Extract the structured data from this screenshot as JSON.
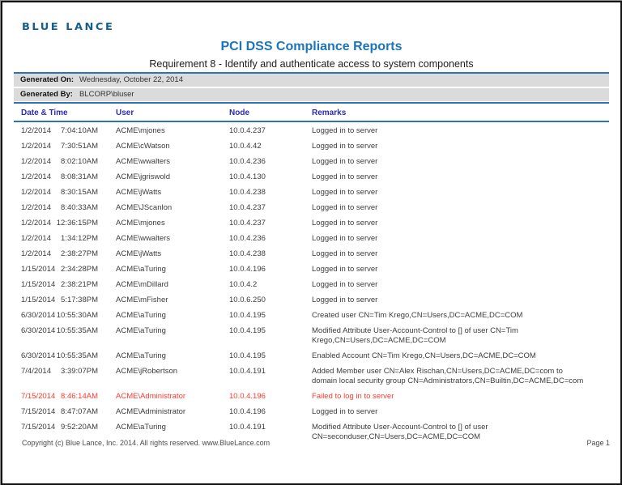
{
  "colors": {
    "logo": "#16608C",
    "title-blue": "#1C75BB",
    "rule-blue": "#2E74B5",
    "bar-gray": "#DBDBDB",
    "header-navy": "#2B2BB2",
    "fail-red": "#FF3B2E"
  },
  "report": {
    "logo_text": "BLUE LANCE",
    "title": "PCI DSS Compliance Reports",
    "subtitle": "Requirement 8 - Identify and authenticate access to system components",
    "generated_on_label": "Generated On:",
    "generated_on": "Wednesday, October 22, 2014",
    "generated_by_label": "Generated By:",
    "generated_by": "BLCORP\\bluser"
  },
  "table": {
    "columns": [
      "Date & Time",
      "User",
      "Node",
      "Remarks"
    ],
    "rows": [
      {
        "date": "1/2/2014",
        "time": "7:04:10AM",
        "user": "ACME\\mjones",
        "node": "10.0.4.237",
        "remarks": "Logged in to server",
        "failed": false
      },
      {
        "date": "1/2/2014",
        "time": "7:30:51AM",
        "user": "ACME\\cWatson",
        "node": "10.0.4.42",
        "remarks": "Logged in to server",
        "failed": false
      },
      {
        "date": "1/2/2014",
        "time": "8:02:10AM",
        "user": "ACME\\wwalters",
        "node": "10.0.4.236",
        "remarks": "Logged in to server",
        "failed": false
      },
      {
        "date": "1/2/2014",
        "time": "8:08:31AM",
        "user": "ACME\\jgriswold",
        "node": "10.0.4.130",
        "remarks": "Logged in to server",
        "failed": false
      },
      {
        "date": "1/2/2014",
        "time": "8:30:15AM",
        "user": "ACME\\jWatts",
        "node": "10.0.4.238",
        "remarks": "Logged in to server",
        "failed": false
      },
      {
        "date": "1/2/2014",
        "time": "8:40:33AM",
        "user": "ACME\\JScanlon",
        "node": "10.0.4.237",
        "remarks": "Logged in to server",
        "failed": false
      },
      {
        "date": "1/2/2014",
        "time": "12:36:15PM",
        "user": "ACME\\mjones",
        "node": "10.0.4.237",
        "remarks": "Logged in to server",
        "failed": false
      },
      {
        "date": "1/2/2014",
        "time": "1:34:12PM",
        "user": "ACME\\wwalters",
        "node": "10.0.4.236",
        "remarks": "Logged in to server",
        "failed": false
      },
      {
        "date": "1/2/2014",
        "time": "2:38:27PM",
        "user": "ACME\\jWatts",
        "node": "10.0.4.238",
        "remarks": "Logged in to server",
        "failed": false
      },
      {
        "date": "1/15/2014",
        "time": "2:34:28PM",
        "user": "ACME\\aTuring",
        "node": "10.0.4.196",
        "remarks": "Logged in to server",
        "failed": false
      },
      {
        "date": "1/15/2014",
        "time": "2:38:21PM",
        "user": "ACME\\mDillard",
        "node": "10.0.4.2",
        "remarks": "Logged in to server",
        "failed": false
      },
      {
        "date": "1/15/2014",
        "time": "5:17:38PM",
        "user": "ACME\\mFisher",
        "node": "10.0.6.250",
        "remarks": "Logged in to server",
        "failed": false
      },
      {
        "date": "6/30/2014",
        "time": "10:55:30AM",
        "user": "ACME\\aTuring",
        "node": "10.0.4.195",
        "remarks": "Created user CN=Tim Krego,CN=Users,DC=ACME,DC=COM",
        "failed": false
      },
      {
        "date": "6/30/2014",
        "time": "10:55:35AM",
        "user": "ACME\\aTuring",
        "node": "10.0.4.195",
        "remarks": "Modified Attribute User-Account-Control to []  of user CN=Tim Krego,CN=Users,DC=ACME,DC=COM",
        "failed": false
      },
      {
        "date": "6/30/2014",
        "time": "10:55:35AM",
        "user": "ACME\\aTuring",
        "node": "10.0.4.195",
        "remarks": "Enabled Account CN=Tim Krego,CN=Users,DC=ACME,DC=COM",
        "failed": false
      },
      {
        "date": "7/4/2014",
        "time": "3:39:07PM",
        "user": "ACME\\jRobertson",
        "node": "10.0.4.191",
        "remarks": "Added Member user CN=Alex Rischan,CN=Users,DC=ACME,DC=com to domain local security group CN=Administrators,CN=Builtin,DC=ACME,DC=com",
        "failed": false
      },
      {
        "date": "7/15/2014",
        "time": "8:46:14AM",
        "user": "ACME\\Administrator",
        "node": "10.0.4.196",
        "remarks": "Failed to log in to server",
        "failed": true
      },
      {
        "date": "7/15/2014",
        "time": "8:47:07AM",
        "user": "ACME\\Administrator",
        "node": "10.0.4.196",
        "remarks": "Logged in to server",
        "failed": false
      },
      {
        "date": "7/15/2014",
        "time": "9:52:20AM",
        "user": "ACME\\aTuring",
        "node": "10.0.4.191",
        "remarks": "Modified Attribute User-Account-Control to [] of user CN=seconduser,CN=Users,DC=ACME,DC=COM",
        "failed": false
      }
    ]
  },
  "footer": {
    "copyright": "Copyright (c) Blue Lance, Inc. 2014. All rights reserved. www.BlueLance.com",
    "page": "Page 1"
  }
}
